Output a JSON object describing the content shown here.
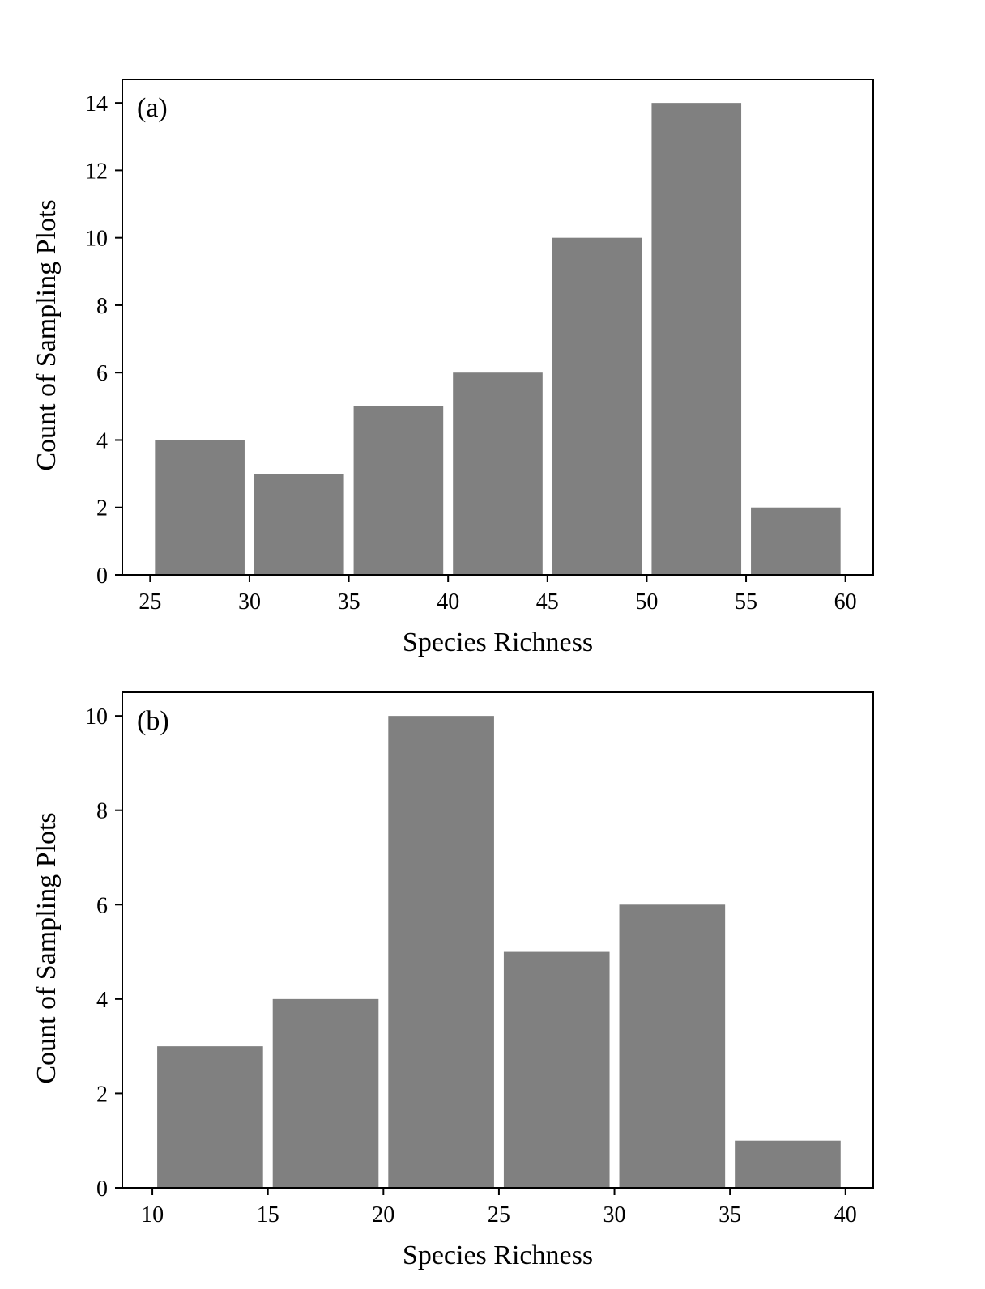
{
  "chart_data": [
    {
      "type": "bar",
      "panel_label": "(a)",
      "xlabel": "Species Richness",
      "ylabel": "Count of Sampling Plots",
      "bins": [
        [
          25,
          30
        ],
        [
          30,
          35
        ],
        [
          35,
          40
        ],
        [
          40,
          45
        ],
        [
          45,
          50
        ],
        [
          50,
          55
        ],
        [
          55,
          60
        ]
      ],
      "values": [
        4,
        3,
        5,
        6,
        10,
        14,
        2
      ],
      "xlim": [
        23.6,
        61.4
      ],
      "ylim": [
        0,
        14.7
      ],
      "xticks": [
        25,
        30,
        35,
        40,
        45,
        50,
        55,
        60
      ],
      "yticks": [
        0,
        2,
        4,
        6,
        8,
        10,
        12,
        14
      ],
      "bar_color": "#808080",
      "grid": false
    },
    {
      "type": "bar",
      "panel_label": "(b)",
      "xlabel": "Species Richness",
      "ylabel": "Count of Sampling Plots",
      "bins": [
        [
          10,
          15
        ],
        [
          15,
          20
        ],
        [
          20,
          25
        ],
        [
          25,
          30
        ],
        [
          30,
          35
        ],
        [
          35,
          40
        ]
      ],
      "values": [
        3,
        4,
        10,
        5,
        6,
        1
      ],
      "xlim": [
        8.7,
        41.2
      ],
      "ylim": [
        0,
        10.5
      ],
      "xticks": [
        10,
        15,
        20,
        25,
        30,
        35,
        40
      ],
      "yticks": [
        0,
        2,
        4,
        6,
        8,
        10
      ],
      "bar_color": "#808080",
      "grid": false
    }
  ]
}
